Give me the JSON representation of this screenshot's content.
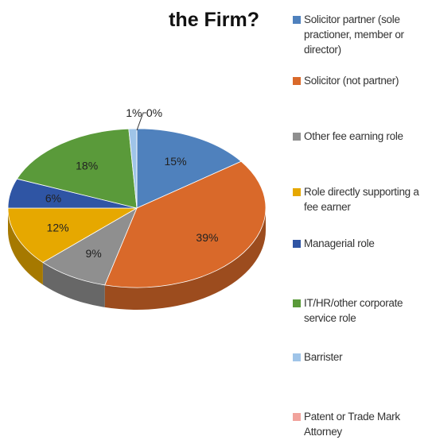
{
  "chart_data": {
    "type": "pie",
    "title": "the Firm?",
    "categories": [
      "Solicitor partner (sole practioner, member or director)",
      "Solicitor (not partner)",
      "Other fee earning role",
      "Role directly supporting a fee earner",
      "Managerial role",
      "IT/HR/other corporate service role",
      "Barrister",
      "Patent or Trade Mark Attorney"
    ],
    "values": [
      15,
      39,
      9,
      12,
      6,
      18,
      1,
      0
    ],
    "value_labels": [
      "15%",
      "39%",
      "9%",
      "12%",
      "6%",
      "18%",
      "1%",
      "0%"
    ],
    "colors": [
      "#4f81bd",
      "#d9692a",
      "#8f8f8f",
      "#e6a800",
      "#2f55a4",
      "#5a9a3a",
      "#9fc4e8",
      "#f1a39c"
    ]
  }
}
